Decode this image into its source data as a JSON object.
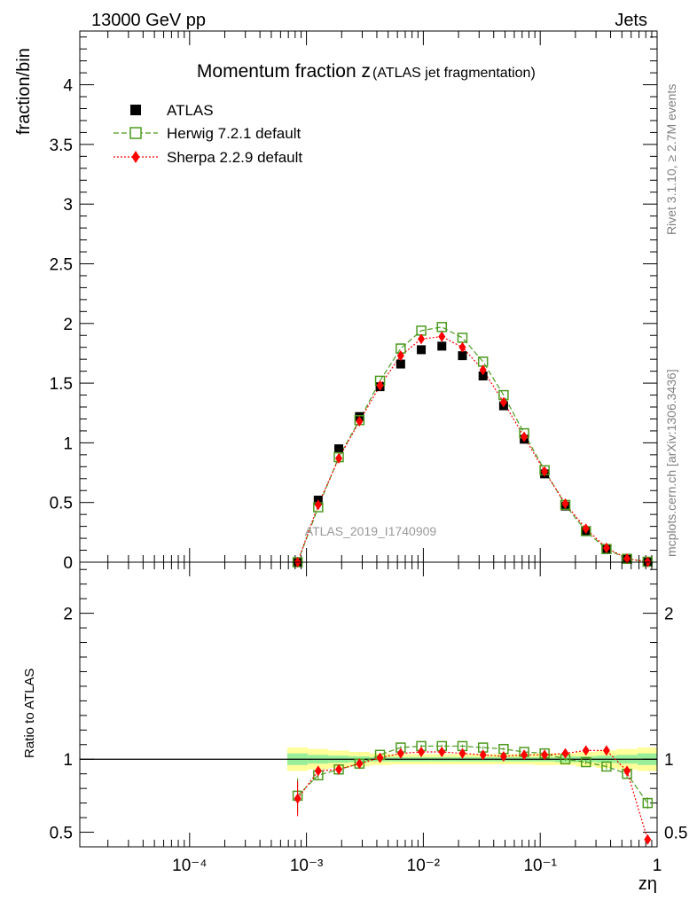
{
  "header": {
    "energy": "13000 GeV pp",
    "process": "Jets",
    "side_rivet": "Rivet 3.1.10, ≥ 2.7M events",
    "side_mcplots": "mcplots.cern.ch [arXiv:1306.3436]",
    "watermark": "ATLAS_2019_I1740909"
  },
  "chart_data": [
    {
      "type": "scatter",
      "title": "Momentum fraction z",
      "title_suffix": "(ATLAS jet fragmentation)",
      "xlabel": "zη",
      "ylabel": "fraction/bin",
      "x_scale": "log",
      "xlim": [
        1.15e-05,
        1.0
      ],
      "ylim": [
        0,
        4.45
      ],
      "yticks": [
        0,
        0.5,
        1,
        1.5,
        2,
        2.5,
        3,
        3.5,
        4
      ],
      "ytick_labels": [
        "0",
        "0.5",
        "1",
        "1.5",
        "2",
        "2.5",
        "3",
        "3.5",
        "4"
      ],
      "xticks": [
        0.0001,
        0.001,
        0.01,
        0.1,
        1
      ],
      "xtick_labels": [
        "10⁻⁴",
        "10⁻³",
        "10⁻²",
        "10⁻¹",
        "1"
      ],
      "legend_position": "top-left",
      "x": [
        0.00084,
        0.00126,
        0.00189,
        0.00284,
        0.00426,
        0.0064,
        0.0096,
        0.0144,
        0.0216,
        0.0324,
        0.0486,
        0.0729,
        0.109,
        0.164,
        0.246,
        0.369,
        0.553,
        0.83
      ],
      "series": [
        {
          "name": "ATLAS",
          "color": "#000000",
          "marker": "filled-square",
          "values": [
            0.0,
            0.52,
            0.95,
            1.22,
            1.47,
            1.66,
            1.78,
            1.81,
            1.73,
            1.56,
            1.31,
            1.03,
            0.74,
            0.47,
            0.26,
            0.11,
            0.03,
            0.005
          ]
        },
        {
          "name": "Herwig 7.2.1 default",
          "color": "#4d9a1f",
          "marker": "open-square",
          "line": "dashed",
          "values": [
            0.0,
            0.46,
            0.88,
            1.19,
            1.52,
            1.79,
            1.94,
            1.97,
            1.88,
            1.68,
            1.4,
            1.08,
            0.77,
            0.48,
            0.26,
            0.11,
            0.028,
            0.004
          ]
        },
        {
          "name": "Sherpa 2.2.9 default",
          "color": "#ff0000",
          "marker": "filled-diamond",
          "line": "dotted",
          "values": [
            0.0,
            0.48,
            0.87,
            1.18,
            1.48,
            1.73,
            1.87,
            1.89,
            1.8,
            1.61,
            1.34,
            1.05,
            0.76,
            0.49,
            0.28,
            0.12,
            0.03,
            0.002
          ]
        }
      ]
    },
    {
      "type": "scatter",
      "ylabel": "Ratio to ATLAS",
      "xlabel": "zη",
      "x_scale": "log",
      "xlim": [
        1.15e-05,
        1.0
      ],
      "ylim": [
        0.4,
        2.35
      ],
      "yticks": [
        0.5,
        1,
        2
      ],
      "ytick_labels": [
        "0.5",
        "1",
        "2"
      ],
      "reference_line": 1,
      "x": [
        0.00084,
        0.00126,
        0.00189,
        0.00284,
        0.00426,
        0.0064,
        0.0096,
        0.0144,
        0.0216,
        0.0324,
        0.0486,
        0.0729,
        0.109,
        0.164,
        0.246,
        0.369,
        0.553,
        0.83
      ],
      "band_stat_halfwidth": [
        0.04,
        0.03,
        0.025,
        0.02,
        0.015,
        0.015,
        0.015,
        0.015,
        0.015,
        0.015,
        0.015,
        0.015,
        0.015,
        0.02,
        0.02,
        0.025,
        0.03,
        0.04
      ],
      "band_total_halfwidth": [
        0.08,
        0.07,
        0.06,
        0.05,
        0.04,
        0.035,
        0.035,
        0.035,
        0.035,
        0.035,
        0.035,
        0.035,
        0.04,
        0.04,
        0.05,
        0.06,
        0.07,
        0.08
      ],
      "series": [
        {
          "name": "Herwig 7.2.1 default",
          "color": "#4d9a1f",
          "values": [
            0.75,
            0.89,
            0.93,
            0.97,
            1.03,
            1.08,
            1.09,
            1.09,
            1.09,
            1.08,
            1.07,
            1.05,
            1.04,
            1.0,
            0.98,
            0.95,
            0.9,
            0.7
          ],
          "errors": [
            0.12,
            0.03,
            0.02,
            0.015,
            0.012,
            0.01,
            0.01,
            0.01,
            0.01,
            0.01,
            0.01,
            0.01,
            0.012,
            0.012,
            0.015,
            0.02,
            0.03,
            0.04
          ]
        },
        {
          "name": "Sherpa 2.2.9 default",
          "color": "#ff0000",
          "values": [
            0.73,
            0.92,
            0.93,
            0.97,
            1.01,
            1.04,
            1.05,
            1.05,
            1.04,
            1.03,
            1.02,
            1.03,
            1.03,
            1.04,
            1.06,
            1.06,
            0.92,
            0.45
          ],
          "errors": [
            0.12,
            0.03,
            0.02,
            0.015,
            0.012,
            0.01,
            0.01,
            0.01,
            0.01,
            0.01,
            0.01,
            0.01,
            0.012,
            0.012,
            0.015,
            0.02,
            0.03,
            0.02
          ]
        }
      ]
    }
  ]
}
